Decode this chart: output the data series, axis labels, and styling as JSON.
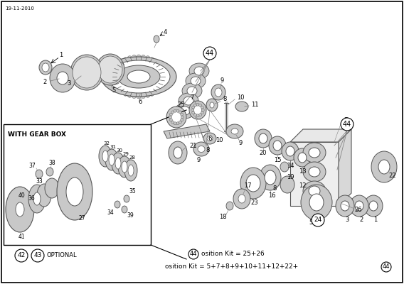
{
  "date_label": "19-11-2010",
  "bg_color": "#ffffff",
  "border_color": "#000000",
  "line_color": "#888888",
  "text_color": "#000000",
  "gear_fill": "#c8c8c8",
  "gear_stroke": "#555555",
  "inset_label": "WITH GEAR BOX",
  "optional_label": "OPTIONAL",
  "kit_label1": "osition Kit = 25+26",
  "kit_label2": "osition Kit = 5+7+8+9+10+11+12+22+",
  "fig_width": 5.68,
  "fig_height": 4.0,
  "dpi": 100
}
